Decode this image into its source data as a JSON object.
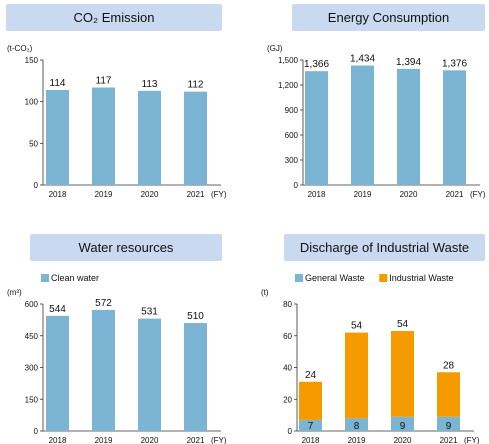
{
  "panels": [
    {
      "title": "CO₂ Emission",
      "unit": "(t-CO₂)",
      "fy_label": "(FY)",
      "legend": [],
      "chart_data": {
        "type": "bar",
        "title": "CO₂ Emission",
        "ylabel": "(t-CO₂)",
        "xlabel": "(FY)",
        "categories": [
          "2018",
          "2019",
          "2020",
          "2021"
        ],
        "ylim": [
          0,
          150
        ],
        "yticks": [
          0,
          50,
          100,
          150
        ],
        "series": [
          {
            "values": [
              114,
              117,
              113,
              112
            ],
            "color": "#7cb4d4"
          }
        ],
        "value_labels": [
          "114",
          "117",
          "113",
          "112"
        ],
        "grid": false
      }
    },
    {
      "title": "Energy Consumption",
      "unit": "(GJ)",
      "fy_label": "(FY)",
      "legend": [],
      "chart_data": {
        "type": "bar",
        "title": "Energy Consumption",
        "ylabel": "(GJ)",
        "xlabel": "(FY)",
        "categories": [
          "2018",
          "2019",
          "2020",
          "2021"
        ],
        "ylim": [
          0,
          1500
        ],
        "yticks": [
          0,
          300,
          600,
          900,
          1200,
          1500
        ],
        "ytick_labels": [
          "0",
          "300",
          "600",
          "900",
          "1,200",
          "1,500"
        ],
        "series": [
          {
            "values": [
              1366,
              1434,
              1394,
              1376
            ],
            "color": "#7cb4d4"
          }
        ],
        "value_labels": [
          "1,366",
          "1,434",
          "1,394",
          "1,376"
        ],
        "grid": false
      }
    },
    {
      "title": "Water resources",
      "unit": "(m³)",
      "fy_label": "(FY)",
      "legend": [
        {
          "label": "Clean water",
          "color": "#7cb4d4"
        }
      ],
      "chart_data": {
        "type": "bar",
        "title": "Water resources",
        "ylabel": "(m³)",
        "xlabel": "(FY)",
        "categories": [
          "2018",
          "2019",
          "2020",
          "2021"
        ],
        "ylim": [
          0,
          600
        ],
        "yticks": [
          0,
          150,
          300,
          450,
          600
        ],
        "series": [
          {
            "name": "Clean water",
            "values": [
              544,
              572,
              531,
              510
            ],
            "color": "#7cb4d4"
          }
        ],
        "value_labels": [
          "544",
          "572",
          "531",
          "510"
        ],
        "legend_position": "top-left",
        "grid": false
      }
    },
    {
      "title": "Discharge of Industrial Waste",
      "unit": "(t)",
      "fy_label": "(FY)",
      "legend": [
        {
          "label": "General Waste",
          "color": "#7cb4d4"
        },
        {
          "label": "Industrial Waste",
          "color": "#f59b00"
        }
      ],
      "chart_data": {
        "type": "bar",
        "stacked": true,
        "title": "Discharge of Industrial Waste",
        "ylabel": "(t)",
        "xlabel": "(FY)",
        "categories": [
          "2018",
          "2019",
          "2020",
          "2021"
        ],
        "ylim": [
          0,
          80
        ],
        "yticks": [
          0,
          20,
          40,
          60,
          80
        ],
        "series": [
          {
            "name": "General Waste",
            "values": [
              7,
              8,
              9,
              9
            ],
            "color": "#7cb4d4"
          },
          {
            "name": "Industrial Waste",
            "values": [
              24,
              54,
              54,
              28
            ],
            "color": "#f59b00"
          }
        ],
        "legend_position": "top-left",
        "grid": false
      }
    }
  ]
}
